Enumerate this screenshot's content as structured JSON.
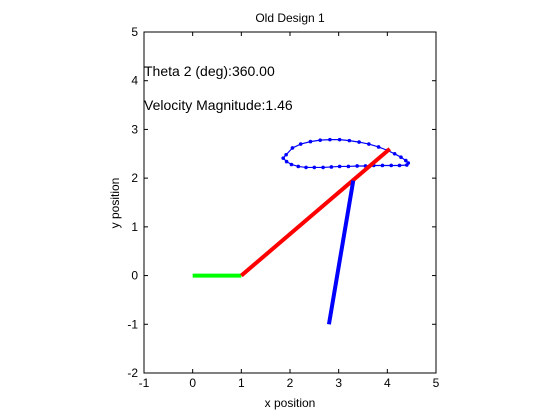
{
  "chart_data": {
    "type": "line",
    "title": "Old Design 1",
    "xlabel": "x position",
    "ylabel": "y position",
    "xlim": [
      -1,
      5
    ],
    "ylim": [
      -2,
      5
    ],
    "xticks": [
      -1,
      0,
      1,
      2,
      3,
      4,
      5
    ],
    "yticks": [
      -2,
      -1,
      0,
      1,
      2,
      3,
      4,
      5
    ],
    "grid": false,
    "annotations": [
      {
        "text": "Theta 2 (deg):360.00",
        "x": -1,
        "y": 4.2
      },
      {
        "text": "Velocity Magnitude:1.46",
        "x": -1,
        "y": 3.5
      }
    ],
    "links": [
      {
        "color": "#00ff00",
        "points": [
          [
            0,
            0
          ],
          [
            1,
            0
          ]
        ]
      },
      {
        "color": "#ff0000",
        "points": [
          [
            1,
            0
          ],
          [
            4.05,
            2.6
          ]
        ]
      },
      {
        "color": "#0000ff",
        "points": [
          [
            2.8,
            -1
          ],
          [
            3.3,
            1.95
          ]
        ]
      }
    ],
    "trace": {
      "color": "#0000ff",
      "marker": "dot",
      "points": [
        [
          1.92,
          2.48
        ],
        [
          2.05,
          2.62
        ],
        [
          2.22,
          2.7
        ],
        [
          2.42,
          2.75
        ],
        [
          2.62,
          2.78
        ],
        [
          2.82,
          2.79
        ],
        [
          3.02,
          2.79
        ],
        [
          3.22,
          2.77
        ],
        [
          3.42,
          2.74
        ],
        [
          3.62,
          2.7
        ],
        [
          3.82,
          2.64
        ],
        [
          4.0,
          2.57
        ],
        [
          4.15,
          2.5
        ],
        [
          4.28,
          2.43
        ],
        [
          4.38,
          2.36
        ],
        [
          4.43,
          2.31
        ],
        [
          4.4,
          2.27
        ],
        [
          4.25,
          2.26
        ],
        [
          4.08,
          2.26
        ],
        [
          3.9,
          2.26
        ],
        [
          3.72,
          2.26
        ],
        [
          3.55,
          2.25
        ],
        [
          3.38,
          2.25
        ],
        [
          3.2,
          2.24
        ],
        [
          3.02,
          2.24
        ],
        [
          2.85,
          2.23
        ],
        [
          2.68,
          2.22
        ],
        [
          2.5,
          2.22
        ],
        [
          2.33,
          2.22
        ],
        [
          2.17,
          2.24
        ],
        [
          2.03,
          2.28
        ],
        [
          1.93,
          2.34
        ],
        [
          1.86,
          2.41
        ]
      ]
    }
  }
}
